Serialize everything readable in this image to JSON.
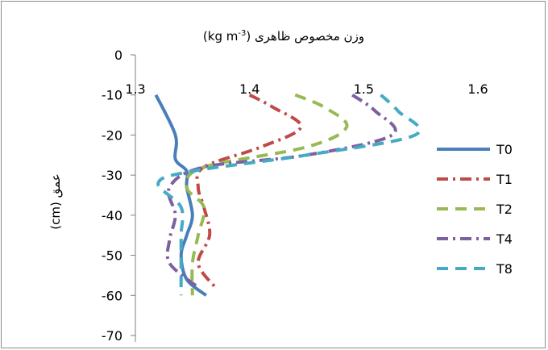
{
  "chart_data": {
    "type": "line",
    "title": "وزن مخصوص ظاهری (kg m",
    "title_sup": "-3",
    "title_close": ")",
    "ylabel": "عمق (cm)",
    "xlabel": "",
    "xlim": [
      1.3,
      1.6
    ],
    "ylim": [
      -70,
      0
    ],
    "x_ticks": [
      "1.3",
      "1.4",
      "1.5",
      "1.6"
    ],
    "y_ticks": [
      "0",
      "-10",
      "-20",
      "-30",
      "-40",
      "-50",
      "-60",
      "-70"
    ],
    "x_axis_position": "top",
    "grid": false,
    "legend_position": "right",
    "series": [
      {
        "name": "T0",
        "color": "#4a7ebb",
        "dash": "solid",
        "points": [
          [
            1.318,
            -10
          ],
          [
            1.335,
            -20
          ],
          [
            1.335,
            -26
          ],
          [
            1.345,
            -29
          ],
          [
            1.345,
            -33
          ],
          [
            1.35,
            -40
          ],
          [
            1.345,
            -45
          ],
          [
            1.34,
            -50
          ],
          [
            1.345,
            -56
          ],
          [
            1.362,
            -60
          ]
        ]
      },
      {
        "name": "T1",
        "color": "#be4b48",
        "dash": "dashdot",
        "points": [
          [
            1.4,
            -10
          ],
          [
            1.42,
            -13
          ],
          [
            1.445,
            -18
          ],
          [
            1.41,
            -23
          ],
          [
            1.36,
            -28
          ],
          [
            1.355,
            -33
          ],
          [
            1.36,
            -38
          ],
          [
            1.365,
            -45
          ],
          [
            1.355,
            -52
          ],
          [
            1.37,
            -58
          ]
        ]
      },
      {
        "name": "T2",
        "color": "#98b954",
        "dash": "dash",
        "points": [
          [
            1.44,
            -10
          ],
          [
            1.465,
            -13
          ],
          [
            1.485,
            -18
          ],
          [
            1.45,
            -23
          ],
          [
            1.36,
            -28
          ],
          [
            1.345,
            -33
          ],
          [
            1.36,
            -38
          ],
          [
            1.355,
            -45
          ],
          [
            1.35,
            -52
          ],
          [
            1.35,
            -60
          ]
        ]
      },
      {
        "name": "T4",
        "color": "#7d60a0",
        "dash": "dashdot",
        "points": [
          [
            1.49,
            -10
          ],
          [
            1.51,
            -14
          ],
          [
            1.525,
            -20
          ],
          [
            1.45,
            -25
          ],
          [
            1.36,
            -28
          ],
          [
            1.33,
            -33
          ],
          [
            1.335,
            -40
          ],
          [
            1.33,
            -46
          ],
          [
            1.33,
            -52
          ],
          [
            1.355,
            -58
          ]
        ]
      },
      {
        "name": "T8",
        "color": "#46aac5",
        "dash": "dash",
        "points": [
          [
            1.515,
            -10
          ],
          [
            1.53,
            -14
          ],
          [
            1.545,
            -20
          ],
          [
            1.45,
            -25
          ],
          [
            1.35,
            -29
          ],
          [
            1.32,
            -32
          ],
          [
            1.34,
            -38
          ],
          [
            1.34,
            -45
          ],
          [
            1.34,
            -52
          ],
          [
            1.34,
            -60
          ]
        ]
      }
    ]
  }
}
